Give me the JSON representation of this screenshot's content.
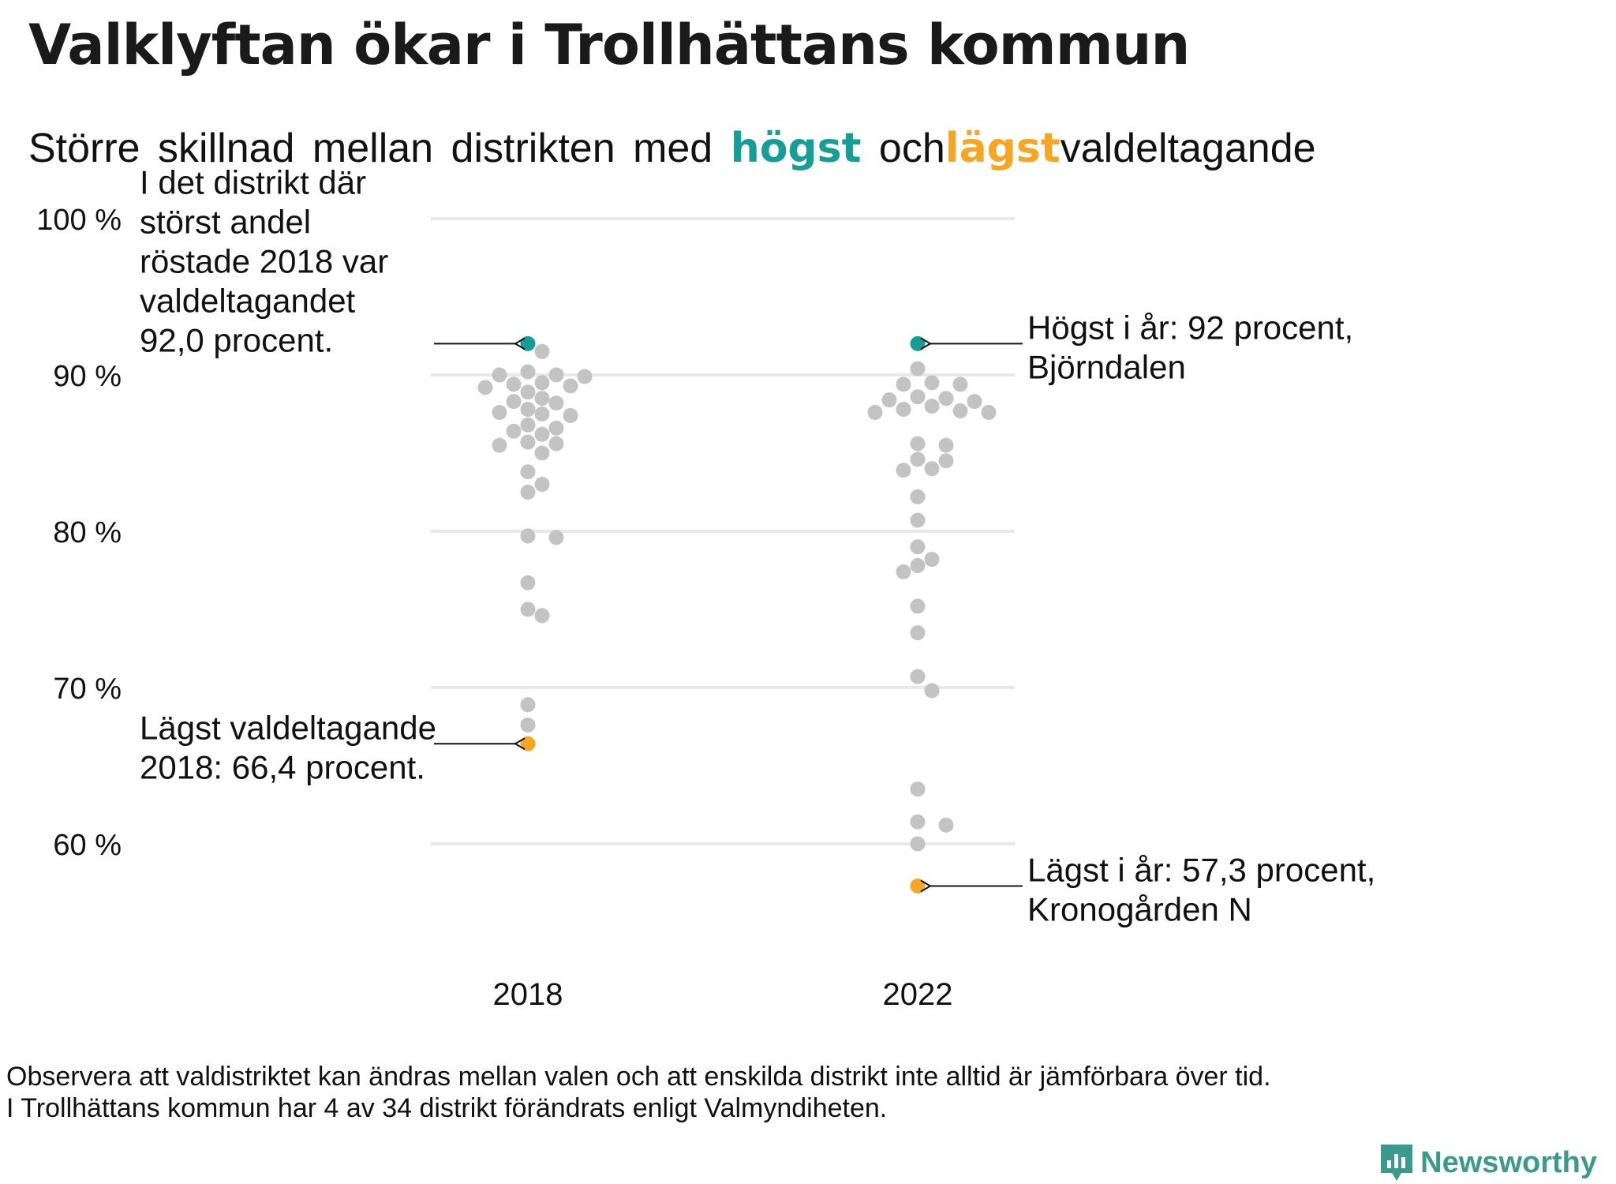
{
  "title": "Valklyftan ökar i Trollhättans kommun",
  "subtitle": {
    "part1": "Större skillnad mellan distrikten med",
    "highlight_high": "högst",
    "part2": "och",
    "highlight_low": "lägst",
    "part3": "valdeltagande"
  },
  "colors": {
    "high": "#169e96",
    "low": "#f5a623",
    "other": "#c3c3c3",
    "grid": "#e8e8e8",
    "brand": "#3a9b8c"
  },
  "chart_data": {
    "type": "scatter",
    "y_unit": "%",
    "ylim": [
      55,
      100
    ],
    "y_ticks": [
      100,
      90,
      80,
      70,
      60
    ],
    "y_tick_labels": [
      "100 %",
      "90 %",
      "80 %",
      "70 %",
      "60 %"
    ],
    "categories": [
      "2018",
      "2022"
    ],
    "grid": true,
    "series": [
      {
        "category": "2018",
        "values": [
          92.0,
          91.5,
          90.2,
          90.0,
          89.9,
          90.0,
          89.5,
          89.4,
          89.2,
          89.3,
          88.9,
          88.5,
          88.3,
          88.2,
          87.8,
          87.6,
          87.5,
          87.4,
          86.8,
          86.6,
          86.4,
          86.2,
          85.7,
          85.6,
          85.5,
          85.0,
          83.8,
          83.0,
          82.5,
          79.6,
          79.7,
          76.7,
          75.0,
          74.6,
          68.9,
          67.6,
          66.4
        ],
        "highest": 92.0,
        "lowest": 66.4
      },
      {
        "category": "2022",
        "values": [
          92.0,
          90.4,
          89.5,
          89.4,
          89.4,
          88.6,
          88.5,
          88.4,
          88.3,
          88.0,
          87.8,
          87.7,
          87.6,
          87.6,
          85.6,
          85.5,
          84.6,
          84.5,
          84.0,
          83.9,
          82.2,
          80.7,
          79.0,
          78.2,
          77.8,
          77.4,
          75.2,
          73.5,
          70.7,
          69.8,
          63.5,
          61.4,
          61.2,
          60.0,
          57.3
        ],
        "highest": 92.0,
        "lowest": 57.3
      }
    ],
    "annotations": [
      {
        "text": [
          "I det distrikt där",
          "störst andel",
          "röstade 2018 var",
          "valdeltagandet",
          "92,0 procent."
        ],
        "category": "2018",
        "value": 92.0,
        "side": "left"
      },
      {
        "text": [
          "Lägst valdeltagande",
          "2018: 66,4 procent."
        ],
        "category": "2018",
        "value": 66.4,
        "side": "left"
      },
      {
        "text": [
          "Högst i år: 92 procent,",
          "Björndalen"
        ],
        "category": "2022",
        "value": 92.0,
        "side": "right"
      },
      {
        "text": [
          "Lägst i år: 57,3 procent,",
          "Kronogården N"
        ],
        "category": "2022",
        "value": 57.3,
        "side": "right"
      }
    ]
  },
  "note": {
    "line1": "Observera att valdistriktet kan ändras mellan valen och att enskilda distrikt inte alltid är jämförbara över tid.",
    "line2": "I Trollhättans kommun har 4 av 34 distrikt förändrats enligt Valmyndiheten."
  },
  "brand": {
    "name": "Newsworthy",
    "icon": "newsworthy-logo-icon"
  }
}
